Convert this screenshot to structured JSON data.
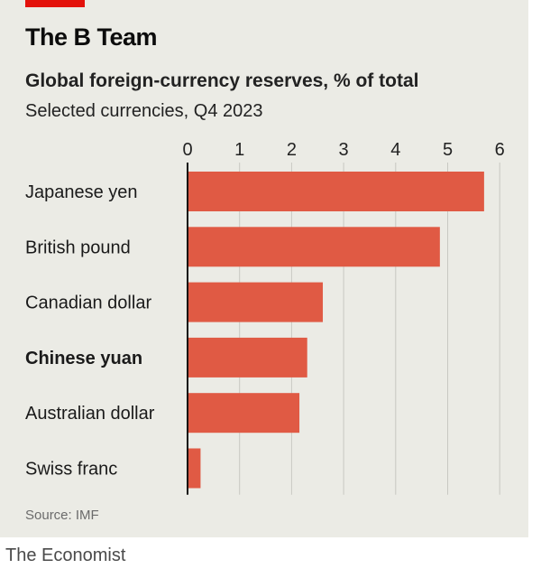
{
  "header": {
    "title": "The B Team",
    "subtitle": "Global foreign-currency reserves, % of total",
    "subsubtitle": "Selected currencies, Q4 2023"
  },
  "source": "Source: IMF",
  "footer": "The Economist",
  "colors": {
    "bar": "#e05a44",
    "background": "#ebebe5",
    "tag": "#e3120b",
    "grid": "#c8c8c2"
  },
  "chart_data": {
    "type": "bar",
    "orientation": "horizontal",
    "title": "Global foreign-currency reserves, % of total",
    "subtitle": "Selected currencies, Q4 2023",
    "categories": [
      "Japanese yen",
      "British pound",
      "Canadian dollar",
      "Chinese yuan",
      "Australian dollar",
      "Swiss franc"
    ],
    "highlighted": "Chinese yuan",
    "values": [
      5.7,
      4.85,
      2.6,
      2.3,
      2.15,
      0.25
    ],
    "xlim": [
      0,
      6
    ],
    "xticks": [
      0,
      1,
      2,
      3,
      4,
      5,
      6
    ],
    "grid": true,
    "xaxis_position": "top"
  }
}
